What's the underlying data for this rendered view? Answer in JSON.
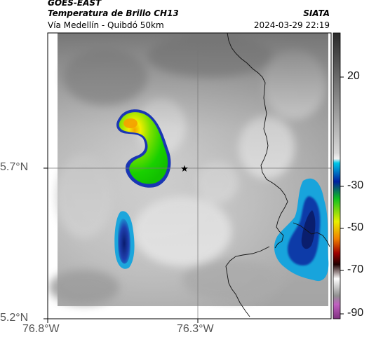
{
  "header": {
    "satellite": "GOES-EAST",
    "product": "Temperatura de Brillo CH13",
    "route": "Vía Medellín - Quibdó 50km",
    "agency": "SIATA",
    "datetime": "2024-03-29 22:19"
  },
  "axes": {
    "lon_ticks": [
      "76.8°W",
      "76.3°W"
    ],
    "lat_ticks": [
      "5.7°N",
      "5.2°N"
    ]
  },
  "colorbar": {
    "ticks": [
      "20",
      "-30",
      "-50",
      "-70",
      "-90"
    ]
  },
  "marker": {
    "icon": "star-icon",
    "color": "#000000"
  },
  "palette": {
    "cold_cyan": "#00bcd4",
    "cold_blue": "#0d2a8a",
    "green": "#22d600",
    "yellow": "#f4ee00",
    "orange": "#f6a300",
    "red": "#b40000",
    "magenta": "#b43cb4"
  }
}
